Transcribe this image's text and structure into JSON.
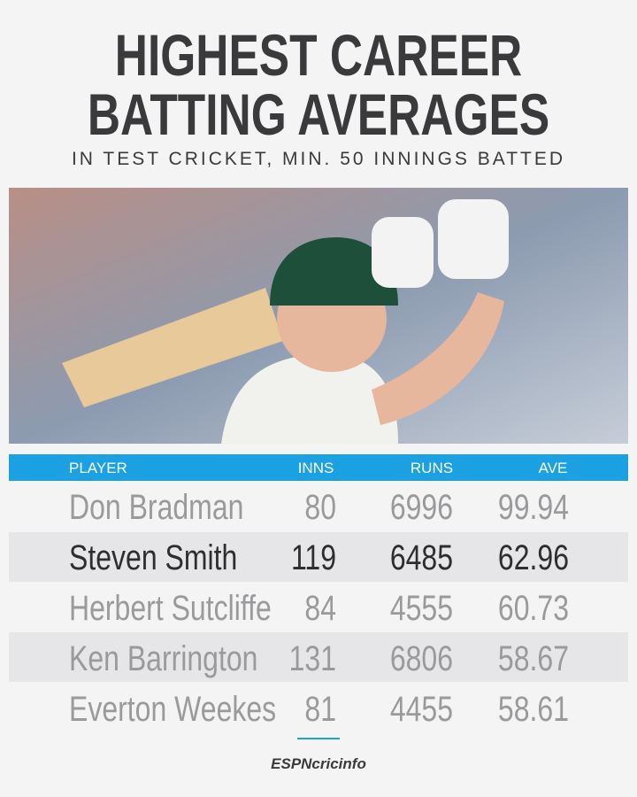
{
  "header": {
    "title_lines": [
      "HIGHEST CAREER",
      "BATTING AVERAGES"
    ],
    "subtitle": "IN TEST CRICKET, MIN. 50 INNINGS BATTED"
  },
  "table": {
    "columns": [
      "PLAYER",
      "INNS",
      "RUNS",
      "AVE"
    ],
    "rows": [
      [
        "Don Bradman",
        "80",
        "6996",
        "99.94"
      ],
      [
        "Steven Smith",
        "119",
        "6485",
        "62.96"
      ],
      [
        "Herbert Sutcliffe",
        "84",
        "4555",
        "60.73"
      ],
      [
        "Ken Barrington",
        "131",
        "6806",
        "58.67"
      ],
      [
        "Everton Weekes",
        "81",
        "4455",
        "58.61"
      ]
    ]
  },
  "footer": {
    "brand": "ESPNcricinfo"
  }
}
